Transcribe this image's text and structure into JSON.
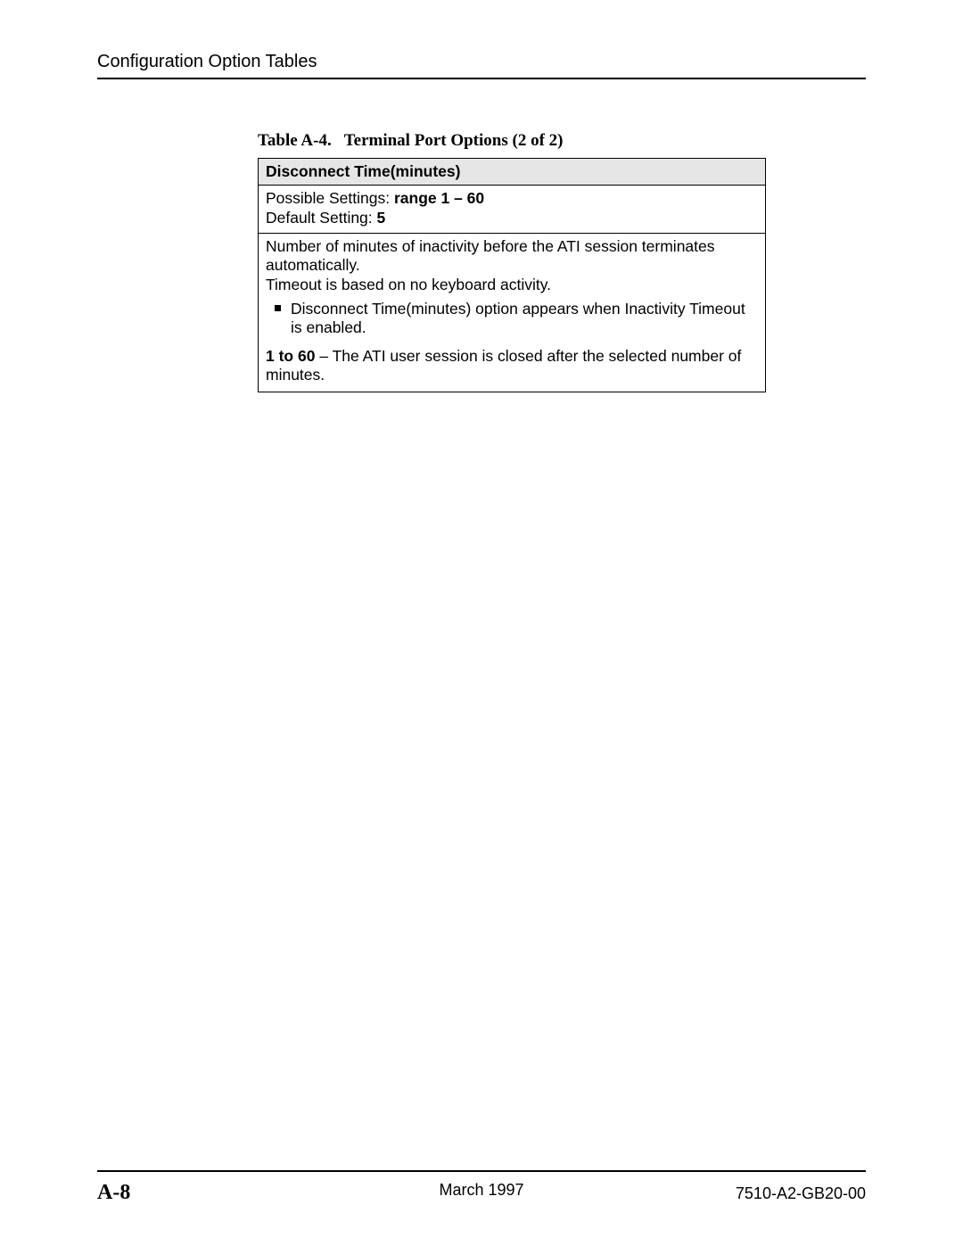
{
  "header": {
    "running_head": "Configuration Option Tables"
  },
  "table": {
    "caption_label": "Table A-4.",
    "caption_title": "Terminal Port Options (2 of 2)",
    "option_name": "Disconnect Time(minutes)",
    "possible_label": "Possible Settings: ",
    "possible_value": "range 1 – 60",
    "default_label": "Default Setting: ",
    "default_value": "5",
    "description_line1": "Number of minutes of inactivity before the ATI session terminates automatically.",
    "description_line2": "Timeout is based on no keyboard activity.",
    "bullet_text": "Disconnect Time(minutes) option appears when Inactivity Timeout is enabled.",
    "range_label": "1 to 60",
    "range_text": " – The ATI user session is closed after the selected number of minutes."
  },
  "footer": {
    "page_number": "A-8",
    "date": "March 1997",
    "doc_id": "7510-A2-GB20-00"
  }
}
